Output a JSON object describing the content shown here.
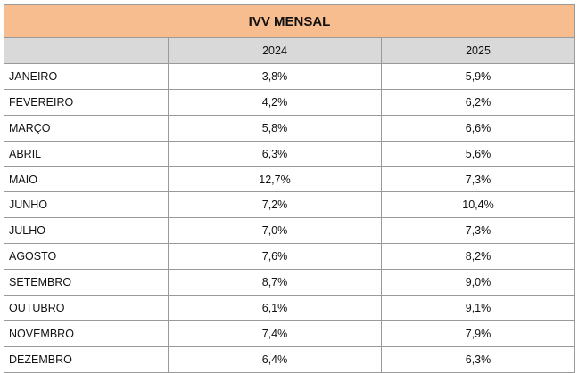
{
  "table": {
    "title": "IVV MENSAL",
    "columns": [
      "2024",
      "2025"
    ],
    "rows": [
      [
        "JANEIRO",
        "3,8%",
        "5,9%"
      ],
      [
        "FEVEREIRO",
        "4,2%",
        "6,2%"
      ],
      [
        "MARÇO",
        "5,8%",
        "6,6%"
      ],
      [
        "ABRIL",
        "6,3%",
        "5,6%"
      ],
      [
        "MAIO",
        "12,7%",
        "7,3%"
      ],
      [
        "JUNHO",
        "7,2%",
        "10,4%"
      ],
      [
        "JULHO",
        "7,0%",
        "7,3%"
      ],
      [
        "AGOSTO",
        "7,6%",
        "8,2%"
      ],
      [
        "SETEMBRO",
        "8,7%",
        "9,0%"
      ],
      [
        "OUTUBRO",
        "6,1%",
        "9,1%"
      ],
      [
        "NOVEMBRO",
        "7,4%",
        "7,9%"
      ],
      [
        "DEZEMBRO",
        "6,4%",
        "6,3%"
      ]
    ]
  }
}
